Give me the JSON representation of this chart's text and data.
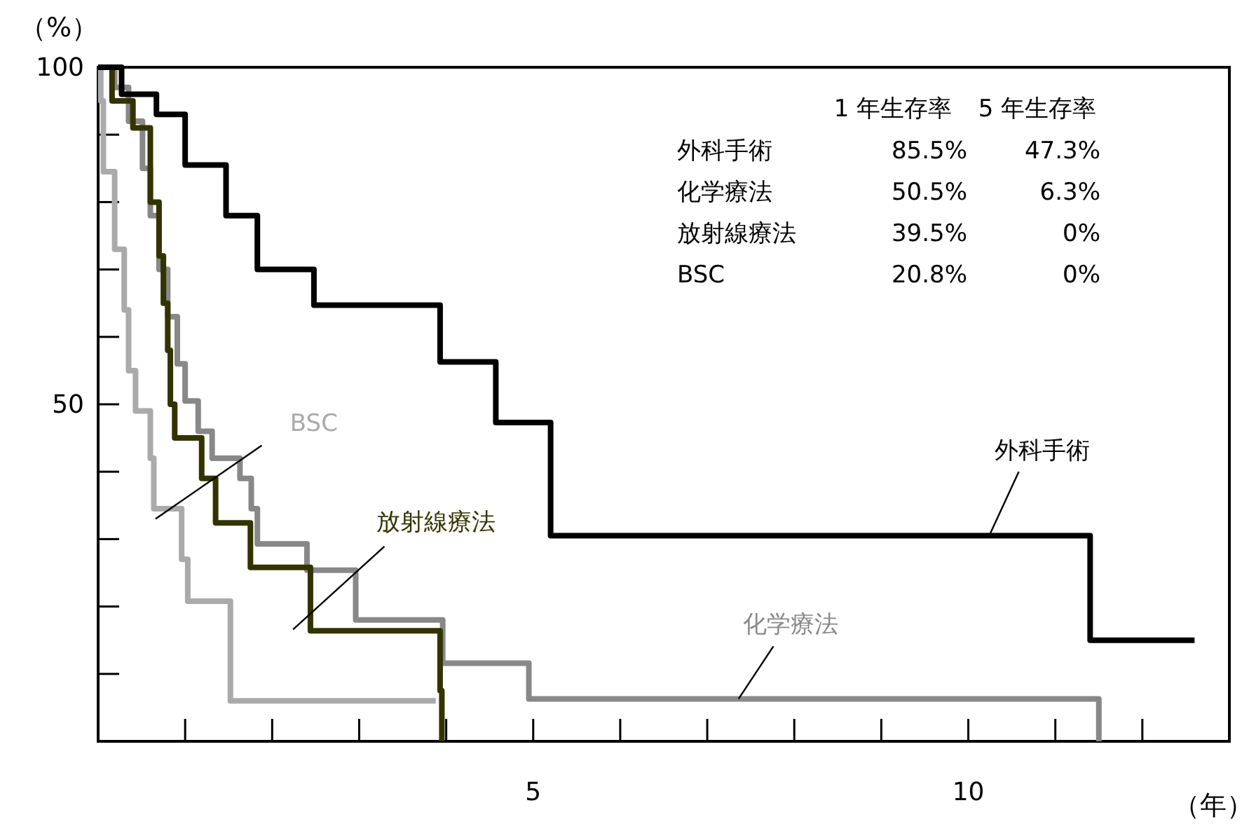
{
  "chart_data": {
    "type": "step",
    "xlabel": "（年）",
    "ylabel": "（%）",
    "xlim": [
      0,
      13
    ],
    "ylim": [
      0,
      100
    ],
    "xticks": [
      {
        "value": 1,
        "label": null
      },
      {
        "value": 2,
        "label": null
      },
      {
        "value": 3,
        "label": null
      },
      {
        "value": 4,
        "label": null
      },
      5,
      {
        "value": 6,
        "label": null
      },
      {
        "value": 7,
        "label": null
      },
      {
        "value": 8,
        "label": null
      },
      {
        "value": 9,
        "label": null
      },
      10,
      {
        "value": 11,
        "label": null
      },
      {
        "value": 12,
        "label": null
      }
    ],
    "yticks": [
      {
        "value": 10,
        "label": null
      },
      {
        "value": 20,
        "label": null
      },
      {
        "value": 30,
        "label": null
      },
      {
        "value": 40,
        "label": null
      },
      50,
      {
        "value": 60,
        "label": null
      },
      {
        "value": 70,
        "label": null
      },
      {
        "value": 80,
        "label": null
      },
      {
        "value": 90,
        "label": null
      },
      100
    ],
    "grid": false,
    "legend": false,
    "marker": "none",
    "line_style": "solid",
    "series": [
      {
        "name": "外科手術",
        "color": "#000000",
        "x": [
          0,
          0.27,
          0.67,
          1.0,
          1.47,
          1.83,
          2.48,
          3.93,
          4.57,
          5.2,
          11.4,
          12.6
        ],
        "values": [
          100,
          96,
          93,
          85.5,
          78,
          70,
          64.7,
          56.3,
          47.3,
          30.5,
          15,
          15
        ]
      },
      {
        "name": "化学療法",
        "color": "#888888",
        "x": [
          0,
          0.19,
          0.35,
          0.51,
          0.6,
          0.7,
          0.8,
          0.91,
          1.0,
          1.15,
          1.31,
          1.63,
          1.76,
          1.83,
          2.4,
          2.96,
          3.96,
          4.95,
          11.5
        ],
        "values": [
          100,
          97,
          92,
          85,
          78,
          70,
          63,
          56,
          50.5,
          46,
          42,
          39,
          34.5,
          29.3,
          25.4,
          18,
          11.6,
          6.3,
          0
        ]
      },
      {
        "name": "放射線療法",
        "color": "#333300",
        "x": [
          0,
          0.16,
          0.4,
          0.6,
          0.7,
          0.75,
          0.8,
          0.83,
          0.88,
          1.19,
          1.35,
          1.75,
          2.44,
          3.93,
          3.95
        ],
        "values": [
          100,
          95,
          91,
          80,
          72,
          65,
          58,
          50,
          45,
          39,
          32.4,
          25.8,
          16.4,
          7.5,
          0
        ]
      },
      {
        "name": "BSC",
        "color": "#aaaaaa",
        "x": [
          0,
          0.03,
          0.06,
          0.19,
          0.3,
          0.35,
          0.43,
          0.6,
          0.64,
          0.96,
          1.03,
          1.52,
          3.88
        ],
        "values": [
          100,
          95,
          84.5,
          73,
          64,
          55,
          49,
          42,
          34.5,
          27,
          20.8,
          6,
          6
        ]
      }
    ],
    "annotations": [
      "1 年生存率",
      "5 年生存率",
      "外科手術",
      "85.5%",
      "47.3%",
      "化学療法",
      "50.5%",
      "6.3%",
      "放射線療法",
      "39.5%",
      "0%",
      "BSC",
      "20.8%",
      "0%"
    ]
  }
}
